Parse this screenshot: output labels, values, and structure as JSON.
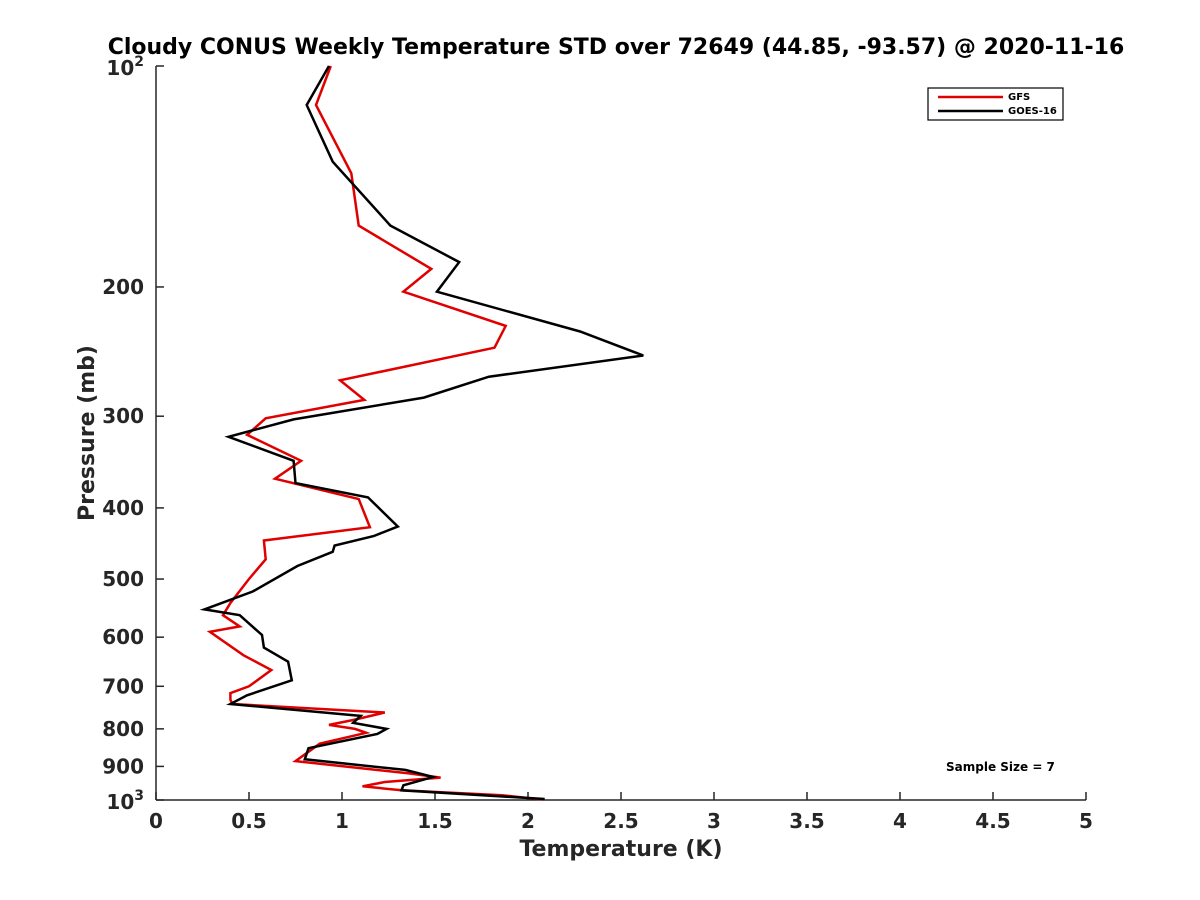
{
  "chart_data": {
    "type": "line",
    "title": "Cloudy CONUS Weekly Temperature STD over 72649 (44.85, -93.57) @ 2020-11-16",
    "xlabel": "Temperature (K)",
    "ylabel": "Pressure (mb)",
    "xlim": [
      0,
      5
    ],
    "ylim": [
      100,
      1000
    ],
    "y_scale": "log",
    "y_reversed": true,
    "grid": false,
    "legend_position": "top-right",
    "annotation": "Sample Size = 7",
    "x_ticks": [
      "0",
      "0.5",
      "1",
      "1.5",
      "2",
      "2.5",
      "3",
      "3.5",
      "4",
      "4.5",
      "5"
    ],
    "x_tick_values": [
      0,
      0.5,
      1,
      1.5,
      2,
      2.5,
      3,
      3.5,
      4,
      4.5,
      5
    ],
    "y_ticks": [
      {
        "value": 100,
        "base": "10",
        "exp": "2"
      },
      {
        "value": 200,
        "label": "200"
      },
      {
        "value": 300,
        "label": "300"
      },
      {
        "value": 400,
        "label": "400"
      },
      {
        "value": 500,
        "label": "500"
      },
      {
        "value": 600,
        "label": "600"
      },
      {
        "value": 700,
        "label": "700"
      },
      {
        "value": 800,
        "label": "800"
      },
      {
        "value": 900,
        "label": "900"
      },
      {
        "value": 1000,
        "base": "10",
        "exp": "3"
      }
    ],
    "series": [
      {
        "name": "GFS",
        "color": "#e00000",
        "points": [
          [
            0.94,
            100
          ],
          [
            0.86,
            113
          ],
          [
            1.05,
            140
          ],
          [
            1.09,
            165
          ],
          [
            1.48,
            189
          ],
          [
            1.33,
            203
          ],
          [
            1.88,
            226
          ],
          [
            1.82,
            242
          ],
          [
            0.99,
            268
          ],
          [
            1.12,
            285
          ],
          [
            0.59,
            302
          ],
          [
            0.49,
            318
          ],
          [
            0.78,
            345
          ],
          [
            0.64,
            365
          ],
          [
            1.09,
            389
          ],
          [
            1.15,
            425
          ],
          [
            0.58,
            443
          ],
          [
            0.59,
            470
          ],
          [
            0.5,
            500
          ],
          [
            0.4,
            539
          ],
          [
            0.36,
            560
          ],
          [
            0.45,
            580
          ],
          [
            0.29,
            590
          ],
          [
            0.47,
            635
          ],
          [
            0.62,
            665
          ],
          [
            0.5,
            700
          ],
          [
            0.4,
            715
          ],
          [
            0.4,
            730
          ],
          [
            0.41,
            740
          ],
          [
            1.23,
            760
          ],
          [
            1.06,
            778
          ],
          [
            0.93,
            790
          ],
          [
            1.07,
            800
          ],
          [
            1.13,
            810
          ],
          [
            0.88,
            838
          ],
          [
            0.75,
            885
          ],
          [
            1.36,
            920
          ],
          [
            1.53,
            932
          ],
          [
            1.23,
            945
          ],
          [
            1.11,
            958
          ],
          [
            1.32,
            970
          ],
          [
            1.86,
            985
          ],
          [
            2.07,
            998
          ]
        ]
      },
      {
        "name": "GOES-16",
        "color": "#000000",
        "points": [
          [
            0.93,
            100
          ],
          [
            0.81,
            113
          ],
          [
            0.95,
            135
          ],
          [
            1.26,
            165
          ],
          [
            1.63,
            185
          ],
          [
            1.51,
            203
          ],
          [
            2.28,
            230
          ],
          [
            2.62,
            248
          ],
          [
            1.79,
            265
          ],
          [
            1.44,
            283
          ],
          [
            0.74,
            303
          ],
          [
            0.39,
            320
          ],
          [
            0.74,
            345
          ],
          [
            0.75,
            370
          ],
          [
            1.14,
            387
          ],
          [
            1.3,
            424
          ],
          [
            1.17,
            437
          ],
          [
            0.96,
            450
          ],
          [
            0.95,
            459
          ],
          [
            0.76,
            480
          ],
          [
            0.52,
            520
          ],
          [
            0.26,
            550
          ],
          [
            0.45,
            560
          ],
          [
            0.57,
            596
          ],
          [
            0.58,
            620
          ],
          [
            0.71,
            648
          ],
          [
            0.73,
            687
          ],
          [
            0.49,
            720
          ],
          [
            0.4,
            740
          ],
          [
            1.1,
            768
          ],
          [
            1.06,
            785
          ],
          [
            1.24,
            800
          ],
          [
            1.19,
            813
          ],
          [
            0.82,
            850
          ],
          [
            0.8,
            880
          ],
          [
            1.34,
            910
          ],
          [
            1.49,
            930
          ],
          [
            1.33,
            955
          ],
          [
            1.32,
            970
          ],
          [
            2.09,
            997
          ]
        ]
      }
    ]
  }
}
